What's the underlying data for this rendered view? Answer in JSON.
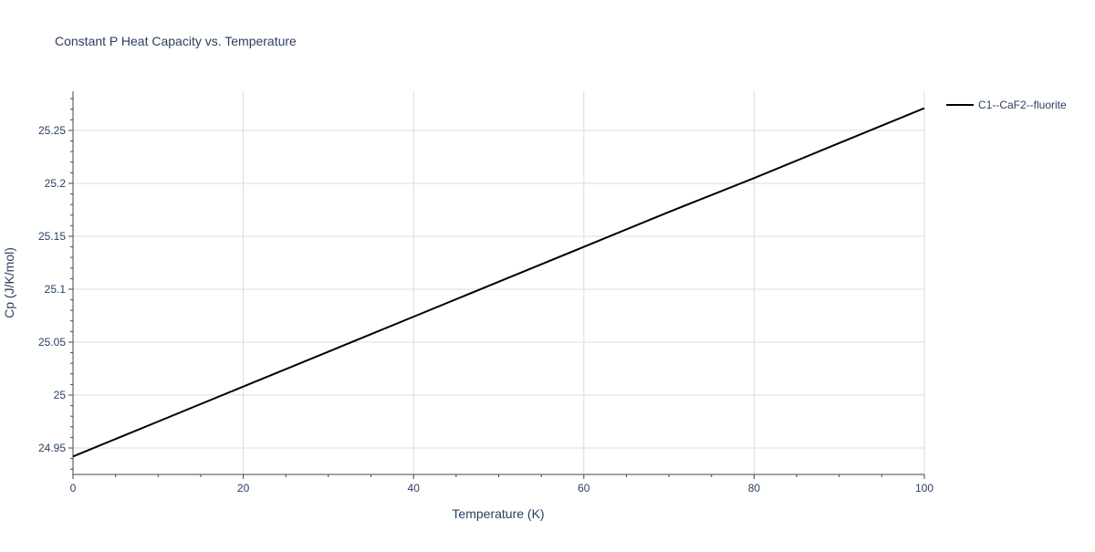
{
  "chart_data": {
    "type": "line",
    "title": "Constant P Heat Capacity vs. Temperature",
    "xlabel": "Temperature (K)",
    "ylabel": "Cp (J/K/mol)",
    "xlim": [
      0,
      100
    ],
    "ylim": [
      24.925,
      25.287
    ],
    "x_ticks": [
      0,
      20,
      40,
      60,
      80,
      100
    ],
    "x_tick_labels": [
      "0",
      "20",
      "40",
      "60",
      "80",
      "100"
    ],
    "y_ticks": [
      24.95,
      25.0,
      25.05,
      25.1,
      25.15,
      25.2,
      25.25
    ],
    "y_tick_labels": [
      "24.95",
      "25",
      "25.05",
      "25.1",
      "25.15",
      "25.2",
      "25.25"
    ],
    "grid": true,
    "legend_position": "top-right",
    "series": [
      {
        "name": "C1--CaF2--fluorite",
        "color": "#000000",
        "x": [
          0,
          10,
          20,
          30,
          40,
          50,
          60,
          70,
          80,
          90,
          100
        ],
        "y": [
          24.942,
          24.975,
          25.008,
          25.041,
          25.074,
          25.107,
          25.14,
          25.173,
          25.205,
          25.238,
          25.271
        ]
      }
    ]
  }
}
